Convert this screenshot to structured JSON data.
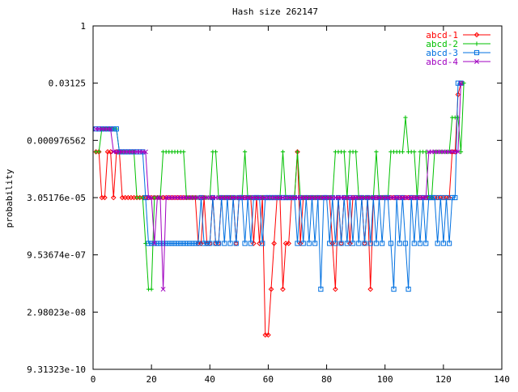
{
  "chart_data": {
    "type": "line",
    "title": "Hash size 262147",
    "xlabel": "",
    "ylabel": "probability",
    "xlim": [
      0,
      140
    ],
    "ylog2lim": [
      -30,
      0
    ],
    "y_scale": "log2",
    "x_ticks": [
      "0",
      "20",
      "40",
      "60",
      "80",
      "100",
      "120",
      "140"
    ],
    "y_ticks": [
      {
        "label": "1",
        "log2": 0
      },
      {
        "label": "0.03125",
        "log2": -5
      },
      {
        "label": "0.000976562",
        "log2": -10
      },
      {
        "label": "3.05176e-05",
        "log2": -15
      },
      {
        "label": "9.53674e-07",
        "log2": -20
      },
      {
        "label": "2.98023e-08",
        "log2": -25
      },
      {
        "label": "9.31323e-10",
        "log2": -30
      }
    ],
    "legend_position": "top-right",
    "series": [
      {
        "name": "abcd-1",
        "color": "#ff0000",
        "marker": "diamond",
        "y_log2": [
          -11,
          -11,
          -15,
          -15,
          -11,
          -11,
          -15,
          -11,
          -11,
          -15,
          -15,
          -15,
          -15,
          -15,
          -15,
          -15,
          -15,
          -15,
          -15,
          -15,
          -15,
          -15,
          -15,
          -15,
          -15,
          -15,
          -15,
          -15,
          -15,
          -15,
          -15,
          -15,
          -15,
          -15,
          -15,
          -19,
          -19,
          -15,
          -19,
          -19,
          -15,
          -19,
          -19,
          -15,
          -15,
          -15,
          -15,
          -15,
          -19,
          -15,
          -15,
          -15,
          -15,
          -15,
          -19,
          -15,
          -19,
          -15,
          -27,
          -27,
          -23,
          -19,
          -15,
          -15,
          -23,
          -19,
          -19,
          -15,
          -15,
          -11,
          -19,
          -15,
          -15,
          -15,
          -15,
          -15,
          -15,
          -15,
          -15,
          -15,
          -15,
          -19,
          -23,
          -15,
          -19,
          -15,
          -15,
          -19,
          -15,
          -15,
          -15,
          -15,
          -19,
          -15,
          -23,
          -15,
          -15,
          -15,
          -15,
          -15,
          -15,
          -15,
          -15,
          -15,
          -15,
          -15,
          -15,
          -15,
          -15,
          -15,
          -15,
          -15,
          -15,
          -15,
          -15,
          -15,
          -15,
          -15,
          -15,
          -15,
          -15,
          -15,
          -11,
          -11,
          -6,
          -5
        ]
      },
      {
        "name": "abcd-2",
        "color": "#00c000",
        "marker": "plus",
        "y_log2": [
          -11,
          -11,
          -9,
          -9,
          -9,
          -9,
          -9,
          -9,
          -11,
          -11,
          -11,
          -11,
          -11,
          -11,
          -15,
          -15,
          -15,
          -19,
          -23,
          -23,
          -15,
          -15,
          -15,
          -11,
          -11,
          -11,
          -11,
          -11,
          -11,
          -11,
          -11,
          -15,
          -15,
          -15,
          -15,
          -15,
          -15,
          -15,
          -15,
          -15,
          -11,
          -11,
          -15,
          -15,
          -15,
          -15,
          -15,
          -15,
          -15,
          -15,
          -15,
          -11,
          -15,
          -15,
          -15,
          -15,
          -15,
          -15,
          -15,
          -15,
          -15,
          -15,
          -15,
          -15,
          -11,
          -15,
          -15,
          -15,
          -15,
          -11,
          -15,
          -15,
          -15,
          -15,
          -15,
          -15,
          -15,
          -15,
          -15,
          -15,
          -15,
          -15,
          -11,
          -11,
          -11,
          -11,
          -15,
          -11,
          -11,
          -11,
          -15,
          -15,
          -15,
          -15,
          -15,
          -15,
          -11,
          -15,
          -15,
          -15,
          -15,
          -11,
          -11,
          -11,
          -11,
          -11,
          -8,
          -11,
          -11,
          -11,
          -15,
          -11,
          -11,
          -11,
          -15,
          -15,
          -11,
          -11,
          -11,
          -11,
          -11,
          -11,
          -8,
          -8,
          -8,
          -11,
          -5
        ]
      },
      {
        "name": "abcd-3",
        "color": "#0070e0",
        "marker": "square",
        "y_log2": [
          -9,
          -9,
          -9,
          -9,
          -9,
          -9,
          -9,
          -9,
          -11,
          -11,
          -11,
          -11,
          -11,
          -11,
          -11,
          -11,
          -11,
          -15,
          -19,
          -19,
          -19,
          -19,
          -19,
          -19,
          -19,
          -19,
          -19,
          -19,
          -19,
          -19,
          -19,
          -19,
          -19,
          -19,
          -19,
          -19,
          -15,
          -19,
          -19,
          -19,
          -15,
          -19,
          -19,
          -15,
          -19,
          -15,
          -19,
          -15,
          -19,
          -15,
          -15,
          -19,
          -15,
          -19,
          -15,
          -15,
          -15,
          -19,
          -15,
          -15,
          -15,
          -15,
          -15,
          -15,
          -15,
          -15,
          -15,
          -15,
          -15,
          -19,
          -15,
          -19,
          -15,
          -19,
          -15,
          -19,
          -15,
          -23,
          -15,
          -15,
          -19,
          -15,
          -19,
          -15,
          -19,
          -15,
          -19,
          -15,
          -19,
          -15,
          -19,
          -15,
          -19,
          -15,
          -19,
          -15,
          -19,
          -15,
          -19,
          -15,
          -15,
          -19,
          -23,
          -15,
          -19,
          -15,
          -19,
          -23,
          -15,
          -19,
          -15,
          -19,
          -15,
          -19,
          -15,
          -15,
          -15,
          -19,
          -15,
          -19,
          -15,
          -19,
          -15,
          -15,
          -5,
          -5
        ]
      },
      {
        "name": "abcd-4",
        "color": "#a000c0",
        "marker": "cross",
        "y_log2": [
          -9,
          -9,
          -9,
          -9,
          -9,
          -9,
          -11,
          -11,
          -11,
          -11,
          -11,
          -11,
          -11,
          -11,
          -11,
          -11,
          -11,
          -11,
          -15,
          -15,
          -19,
          -15,
          -15,
          -23,
          -15,
          -15,
          -15,
          -15,
          -15,
          -15,
          -15,
          -15,
          -15,
          -15,
          -15,
          -15,
          -15,
          -15,
          -15,
          -15,
          -15,
          -15,
          -15,
          -15,
          -15,
          -15,
          -15,
          -15,
          -15,
          -15,
          -15,
          -15,
          -15,
          -15,
          -15,
          -15,
          -15,
          -15,
          -15,
          -15,
          -15,
          -15,
          -15,
          -15,
          -15,
          -15,
          -15,
          -15,
          -15,
          -15,
          -15,
          -15,
          -15,
          -15,
          -15,
          -15,
          -15,
          -15,
          -15,
          -15,
          -15,
          -15,
          -15,
          -15,
          -15,
          -15,
          -15,
          -15,
          -15,
          -15,
          -15,
          -15,
          -15,
          -15,
          -15,
          -15,
          -15,
          -15,
          -15,
          -15,
          -15,
          -15,
          -15,
          -15,
          -15,
          -15,
          -15,
          -15,
          -15,
          -15,
          -15,
          -15,
          -15,
          -15,
          -11,
          -11,
          -11,
          -11,
          -11,
          -11,
          -11,
          -11,
          -11,
          -11,
          -11,
          -5
        ]
      }
    ]
  }
}
